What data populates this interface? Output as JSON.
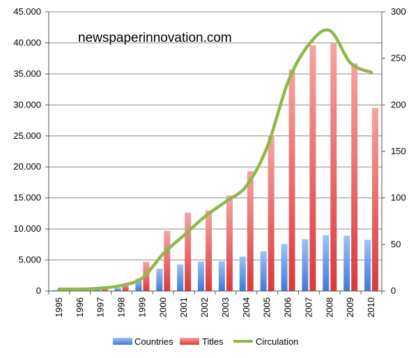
{
  "chart_data": {
    "type": "bar",
    "annotation": "newspaperinnovation.com",
    "categories": [
      "1995",
      "1996",
      "1997",
      "1998",
      "1999",
      "2000",
      "2001",
      "2002",
      "2003",
      "2004",
      "2005",
      "2006",
      "2007",
      "2008",
      "2009",
      "2010"
    ],
    "ylim": [
      0,
      45000
    ],
    "y2lim": [
      0,
      300
    ],
    "y_ticks": [
      "0",
      "5.000",
      "10.000",
      "15.000",
      "20.000",
      "25.000",
      "30.000",
      "35.000",
      "40.000",
      "45.000"
    ],
    "y2_ticks": [
      "0",
      "50",
      "100",
      "150",
      "200",
      "250",
      "300"
    ],
    "grid": true,
    "legend_position": "bottom",
    "series": [
      {
        "name": "Countries",
        "axis": "left",
        "color": "#5b8fe0",
        "values": [
          150,
          180,
          250,
          500,
          2000,
          3600,
          4300,
          4750,
          4800,
          5550,
          6400,
          7600,
          8350,
          9000,
          8900,
          8250
        ]
      },
      {
        "name": "Titles",
        "axis": "left",
        "color": "#e85a5a",
        "values": [
          200,
          300,
          500,
          1100,
          4700,
          9700,
          12600,
          13000,
          15400,
          19300,
          25000,
          35700,
          39600,
          39900,
          36700,
          29500
        ]
      },
      {
        "name": "Circulation",
        "axis": "right",
        "type": "line",
        "color": "#8db94a",
        "values": [
          2,
          2,
          3,
          6,
          14,
          40,
          60,
          80,
          96,
          113,
          155,
          225,
          265,
          280,
          245,
          235
        ]
      }
    ]
  }
}
